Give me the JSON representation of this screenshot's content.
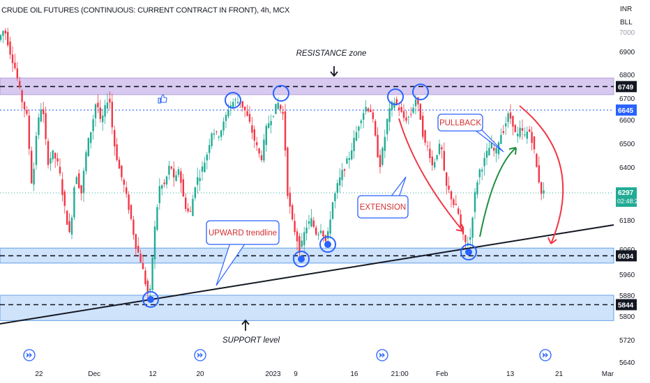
{
  "header": {
    "title": "CRUDE OIL FUTURES (CONTINUOUS: CURRENT CONTRACT IN FRONT), 4h, MCX",
    "currency": "INR",
    "unit": "BLL"
  },
  "chart_data": {
    "type": "candlestick",
    "y_ticks": [
      5640,
      5720,
      5800,
      5880,
      5960,
      6060,
      6180,
      6300,
      6400,
      6500,
      6600,
      6700,
      6800,
      6900,
      7000
    ],
    "x_ticks": [
      {
        "label": "22",
        "x": 0.06
      },
      {
        "label": "Dec",
        "x": 0.145
      },
      {
        "label": "12",
        "x": 0.235
      },
      {
        "label": "20",
        "x": 0.308
      },
      {
        "label": "2023",
        "x": 0.42
      },
      {
        "label": "9",
        "x": 0.455
      },
      {
        "label": "16",
        "x": 0.545
      },
      {
        "label": "21:00",
        "x": 0.615
      },
      {
        "label": "Feb",
        "x": 0.68
      },
      {
        "label": "13",
        "x": 0.785
      },
      {
        "label": "21",
        "x": 0.86
      },
      {
        "label": "Mar",
        "x": 0.935
      }
    ],
    "price_labels": [
      {
        "value": "6749",
        "color": "#131722"
      },
      {
        "value": "6645",
        "color": "#2962ff"
      },
      {
        "value": "6297",
        "color": "#22ab94",
        "sub": "02:48:22"
      },
      {
        "value": "6034",
        "color": "#131722"
      },
      {
        "value": "5844",
        "color": "#131722"
      }
    ],
    "resistance_zone": {
      "low": 6715,
      "high": 6785,
      "mid": 6749
    },
    "support_zones": [
      {
        "low": 6005,
        "high": 6065,
        "mid": 6034
      },
      {
        "low": 5785,
        "high": 5880,
        "mid": 5844
      }
    ],
    "blue_level": 6645,
    "current_price": 6297,
    "colors": {
      "up": "#22ab94",
      "down": "#f23645",
      "zone_purple": "#b39ddb",
      "zone_blue": "#90caf9",
      "blue": "#2962ff",
      "green": "#22ab94",
      "red": "#f23645"
    },
    "annotations": {
      "resistance": "RESISTANCE zone",
      "support": "SUPPORT level",
      "upward": "UPWARD trendline",
      "extension": "EXTENSION",
      "pullback": "PULLBACK"
    }
  }
}
